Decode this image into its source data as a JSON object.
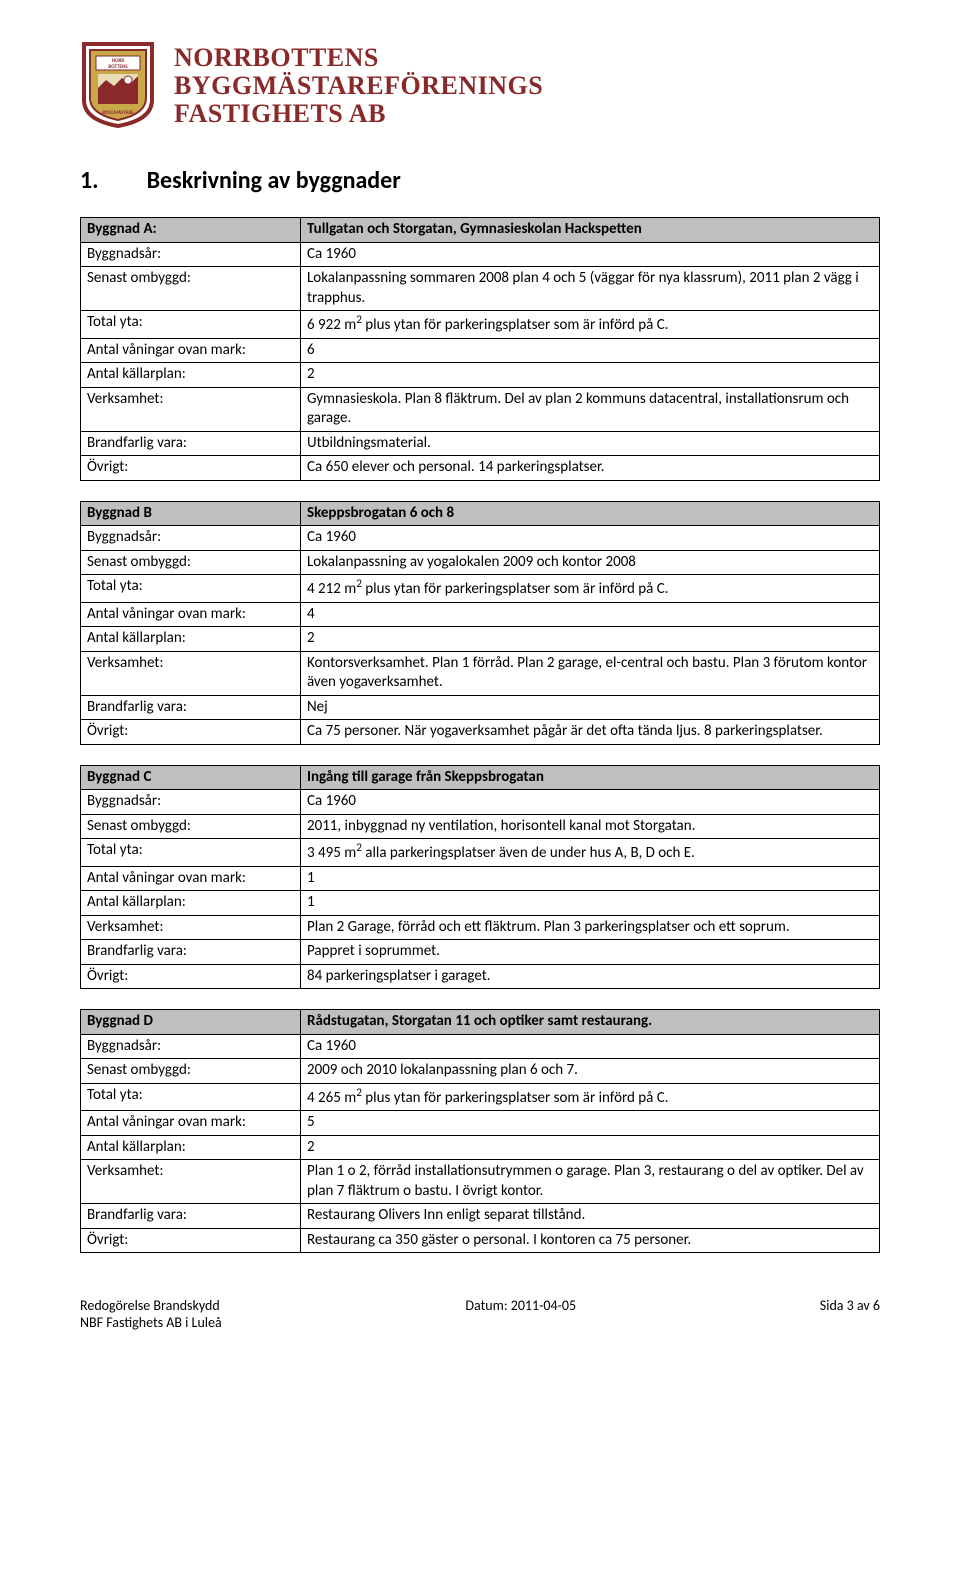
{
  "header": {
    "org_line1": "NORRBOTTENS",
    "org_line2": "BYGGMÄSTAREFÖRENINGS",
    "org_line3": "FASTIGHETS AB",
    "logo_colors": {
      "frame": "#8a2929",
      "inner": "#c0a050",
      "accent": "#ffffff"
    }
  },
  "section": {
    "number": "1.",
    "title": "Beskrivning av byggnader"
  },
  "tables": [
    {
      "header_label": "Byggnad A:",
      "header_value": "Tullgatan och Storgatan, Gymnasieskolan Hackspetten",
      "rows": [
        {
          "label": "Byggnadsår:",
          "value": "Ca 1960"
        },
        {
          "label": "Senast ombyggd:",
          "value": "Lokalanpassning sommaren 2008 plan 4 och 5 (väggar för nya klassrum), 2011 plan 2 vägg i trapphus."
        },
        {
          "label": "Total yta:",
          "value_html": "6 922 m<sup>2</sup> plus ytan för parkeringsplatser som är införd på C."
        },
        {
          "label": "Antal våningar ovan mark:",
          "value": "6"
        },
        {
          "label": "Antal källarplan:",
          "value": "2"
        },
        {
          "label": "Verksamhet:",
          "value": "Gymnasieskola. Plan 8 fläktrum. Del av plan 2 kommuns datacentral, installationsrum och garage."
        },
        {
          "label": "Brandfarlig vara:",
          "value": "Utbildningsmaterial."
        },
        {
          "label": "Övrigt:",
          "value": "Ca 650 elever och personal. 14 parkeringsplatser."
        }
      ]
    },
    {
      "header_label": "Byggnad B",
      "header_value": "Skeppsbrogatan 6 och 8",
      "rows": [
        {
          "label": "Byggnadsår:",
          "value": "Ca 1960"
        },
        {
          "label": "Senast ombyggd:",
          "value": "Lokalanpassning av yogalokalen 2009 och kontor 2008"
        },
        {
          "label": "Total yta:",
          "value_html": "4 212 m<sup>2</sup> plus ytan för parkeringsplatser som är införd på C."
        },
        {
          "label": "Antal våningar ovan mark:",
          "value": "4"
        },
        {
          "label": "Antal källarplan:",
          "value": "2"
        },
        {
          "label": "Verksamhet:",
          "value": "Kontorsverksamhet. Plan 1 förråd. Plan 2 garage, el-central och bastu. Plan 3 förutom kontor även yogaverksamhet."
        },
        {
          "label": "Brandfarlig vara:",
          "value": "Nej"
        },
        {
          "label": "Övrigt:",
          "value": "Ca 75 personer. När yogaverksamhet pågår är det ofta tända ljus. 8 parkeringsplatser."
        }
      ]
    },
    {
      "header_label": "Byggnad C",
      "header_value": "Ingång till garage från Skeppsbrogatan",
      "rows": [
        {
          "label": "Byggnadsår:",
          "value": "Ca 1960"
        },
        {
          "label": "Senast ombyggd:",
          "value": "2011, inbyggnad ny ventilation, horisontell kanal mot Storgatan."
        },
        {
          "label": "Total yta:",
          "value_html": "3 495 m<sup>2</sup> alla parkeringsplatser även de under hus A, B, D och E."
        },
        {
          "label": "Antal våningar ovan mark:",
          "value": "1"
        },
        {
          "label": "Antal källarplan:",
          "value": "1"
        },
        {
          "label": "Verksamhet:",
          "value": "Plan 2 Garage, förråd och ett fläktrum. Plan 3 parkeringsplatser och ett soprum."
        },
        {
          "label": "Brandfarlig vara:",
          "value": "Pappret i soprummet."
        },
        {
          "label": "Övrigt:",
          "value": "84 parkeringsplatser i garaget."
        }
      ]
    },
    {
      "header_label": "Byggnad D",
      "header_value": "Rådstugatan, Storgatan 11 och optiker samt restaurang.",
      "rows": [
        {
          "label": "Byggnadsår:",
          "value": "Ca 1960"
        },
        {
          "label": "Senast ombyggd:",
          "value": "2009 och 2010 lokalanpassning plan 6 och 7."
        },
        {
          "label": "Total yta:",
          "value_html": "4 265 m<sup>2</sup> plus ytan för parkeringsplatser som är införd på C."
        },
        {
          "label": "Antal våningar ovan mark:",
          "value": "5"
        },
        {
          "label": "Antal källarplan:",
          "value": "2"
        },
        {
          "label": "Verksamhet:",
          "value": "Plan 1 o 2, förråd installationsutrymmen o garage. Plan 3, restaurang o del av optiker. Del av plan 7 fläktrum o bastu. I övrigt kontor."
        },
        {
          "label": "Brandfarlig vara:",
          "value": "Restaurang Olivers Inn enligt separat tillstånd."
        },
        {
          "label": "Övrigt:",
          "value": "Restaurang ca 350 gäster o personal. I kontoren ca 75 personer."
        }
      ]
    }
  ],
  "footer": {
    "left_line1": "Redogörelse Brandskydd",
    "left_line2": "NBF Fastighets AB i Luleå",
    "center": "Datum: 2011-04-05",
    "right": "Sida 3 av 6"
  }
}
